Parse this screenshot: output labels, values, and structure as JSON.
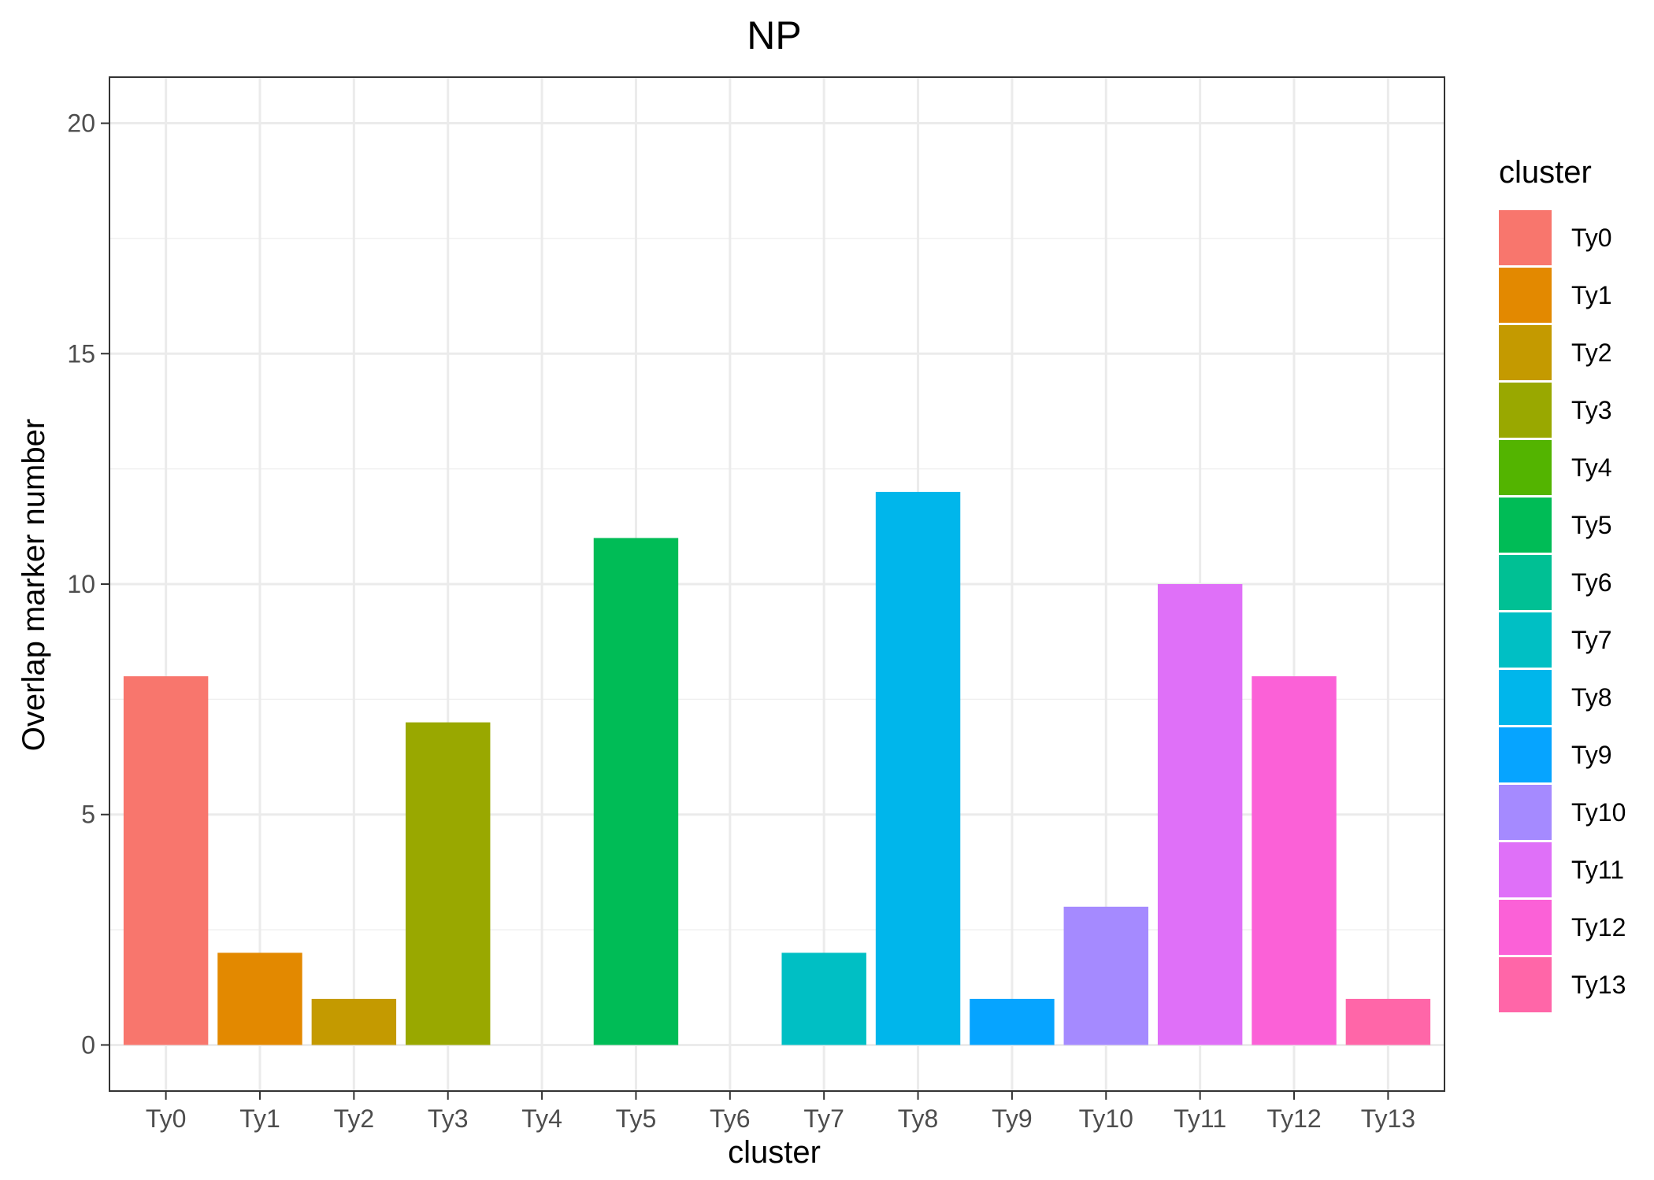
{
  "chart_data": {
    "type": "bar",
    "title": "NP",
    "xlabel": "cluster",
    "ylabel": "Overlap marker number",
    "categories": [
      "Ty0",
      "Ty1",
      "Ty2",
      "Ty3",
      "Ty4",
      "Ty5",
      "Ty6",
      "Ty7",
      "Ty8",
      "Ty9",
      "Ty10",
      "Ty11",
      "Ty12",
      "Ty13"
    ],
    "values": [
      8,
      2,
      1,
      7,
      0,
      11,
      0,
      2,
      12,
      1,
      3,
      10,
      8,
      1
    ],
    "colors": [
      "#F8766D",
      "#E38900",
      "#C49A00",
      "#99A800",
      "#53B400",
      "#00BC56",
      "#00C094",
      "#00BFC4",
      "#00B6EB",
      "#06A4FF",
      "#A58AFF",
      "#DF70F8",
      "#FB61D7",
      "#FF66A8"
    ],
    "ylim": [
      -1,
      21
    ],
    "yticks": [
      0,
      5,
      10,
      15,
      20
    ],
    "grid": true,
    "legend": {
      "title": "cluster",
      "position": "right",
      "entries": [
        "Ty0",
        "Ty1",
        "Ty2",
        "Ty3",
        "Ty4",
        "Ty5",
        "Ty6",
        "Ty7",
        "Ty8",
        "Ty9",
        "Ty10",
        "Ty11",
        "Ty12",
        "Ty13"
      ]
    }
  }
}
